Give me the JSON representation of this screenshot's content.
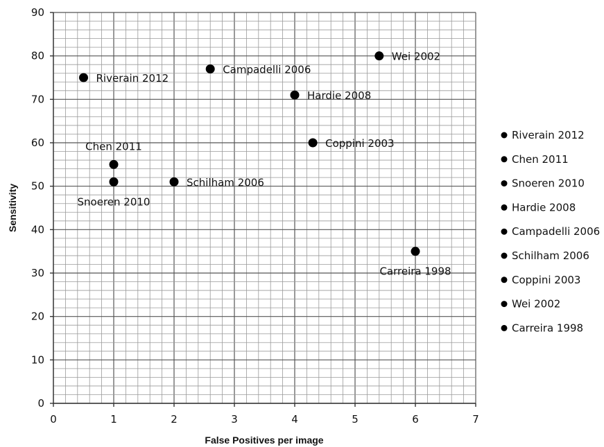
{
  "chart_data": {
    "type": "scatter",
    "title": "",
    "xlabel": "False Positives per image",
    "ylabel": "Sensitivity",
    "xlim": [
      0,
      7
    ],
    "ylim": [
      0,
      90
    ],
    "x_ticks": [
      "0",
      "1",
      "2",
      "3",
      "4",
      "5",
      "6",
      "7"
    ],
    "y_ticks": [
      "0",
      "10",
      "20",
      "30",
      "40",
      "50",
      "60",
      "70",
      "80",
      "90"
    ],
    "grid": true,
    "marker_color": "#000000",
    "legend_position": "right",
    "points": [
      {
        "name": "Riverain 2012",
        "x": 0.5,
        "y": 75,
        "label_side": "right"
      },
      {
        "name": "Chen 2011",
        "x": 1.0,
        "y": 55,
        "label_side": "above"
      },
      {
        "name": "Snoeren 2010",
        "x": 1.0,
        "y": 51,
        "label_side": "below"
      },
      {
        "name": "Hardie 2008",
        "x": 4.0,
        "y": 71,
        "label_side": "right"
      },
      {
        "name": "Campadelli 2006",
        "x": 2.6,
        "y": 77,
        "label_side": "right"
      },
      {
        "name": "Schilham 2006",
        "x": 2.0,
        "y": 51,
        "label_side": "right"
      },
      {
        "name": "Coppini 2003",
        "x": 4.3,
        "y": 60,
        "label_side": "right"
      },
      {
        "name": "Wei 2002",
        "x": 5.4,
        "y": 80,
        "label_side": "right"
      },
      {
        "name": "Carreira 1998",
        "x": 6.0,
        "y": 35,
        "label_side": "below"
      }
    ]
  }
}
